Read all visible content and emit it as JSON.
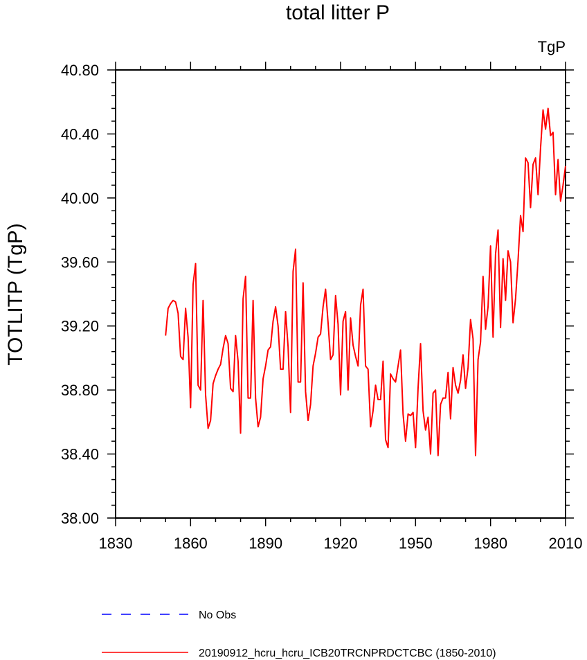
{
  "chart_data": {
    "type": "line",
    "title": "total litter P",
    "units_label": "TgP",
    "ylabel": "TOTLITP  (TgP)",
    "xlabel": "",
    "xlim": [
      1830,
      2010
    ],
    "ylim": [
      38.0,
      40.8
    ],
    "x_ticks": [
      1830,
      1860,
      1890,
      1920,
      1950,
      1980,
      2010
    ],
    "x_tick_labels": [
      "1830",
      "1860",
      "1890",
      "1920",
      "1950",
      "1980",
      "2010"
    ],
    "y_ticks": [
      38.0,
      38.4,
      38.8,
      39.2,
      39.6,
      40.0,
      40.4,
      40.8
    ],
    "y_tick_labels": [
      "38.00",
      "38.40",
      "38.80",
      "39.20",
      "39.60",
      "40.00",
      "40.40",
      "40.80"
    ],
    "grid": false,
    "legend": [
      {
        "label": "No Obs",
        "color": "#0000ff",
        "style": "dashed"
      },
      {
        "label": "20190912_hcru_hcru_ICB20TRCNPRDCTCBC (1850-2010)",
        "color": "#ff0000",
        "style": "solid"
      }
    ],
    "series": [
      {
        "name": "20190912_hcru_hcru_ICB20TRCNPRDCTCBC (1850-2010)",
        "color": "#ff0000",
        "x": [
          1850,
          1851,
          1852,
          1853,
          1854,
          1855,
          1856,
          1857,
          1858,
          1859,
          1860,
          1861,
          1862,
          1863,
          1864,
          1865,
          1866,
          1867,
          1868,
          1869,
          1870,
          1871,
          1872,
          1873,
          1874,
          1875,
          1876,
          1877,
          1878,
          1879,
          1880,
          1881,
          1882,
          1883,
          1884,
          1885,
          1886,
          1887,
          1888,
          1889,
          1890,
          1891,
          1892,
          1893,
          1894,
          1895,
          1896,
          1897,
          1898,
          1899,
          1900,
          1901,
          1902,
          1903,
          1904,
          1905,
          1906,
          1907,
          1908,
          1909,
          1910,
          1911,
          1912,
          1913,
          1914,
          1915,
          1916,
          1917,
          1918,
          1919,
          1920,
          1921,
          1922,
          1923,
          1924,
          1925,
          1926,
          1927,
          1928,
          1929,
          1930,
          1931,
          1932,
          1933,
          1934,
          1935,
          1936,
          1937,
          1938,
          1939,
          1940,
          1941,
          1942,
          1943,
          1944,
          1945,
          1946,
          1947,
          1948,
          1949,
          1950,
          1951,
          1952,
          1953,
          1954,
          1955,
          1956,
          1957,
          1958,
          1959,
          1960,
          1961,
          1962,
          1963,
          1964,
          1965,
          1966,
          1967,
          1968,
          1969,
          1970,
          1971,
          1972,
          1973,
          1974,
          1975,
          1976,
          1977,
          1978,
          1979,
          1980,
          1981,
          1982,
          1983,
          1984,
          1985,
          1986,
          1987,
          1988,
          1989,
          1990,
          1991,
          1992,
          1993,
          1994,
          1995,
          1996,
          1997,
          1998,
          1999,
          2000,
          2001,
          2002,
          2003,
          2004,
          2005,
          2006,
          2007,
          2008,
          2009,
          2010
        ],
        "y": [
          39.14,
          39.31,
          39.34,
          39.36,
          39.35,
          39.28,
          39.01,
          38.99,
          39.31,
          39.13,
          38.69,
          39.46,
          39.59,
          38.83,
          38.8,
          39.36,
          38.77,
          38.56,
          38.61,
          38.84,
          38.89,
          38.93,
          38.96,
          39.06,
          39.14,
          39.09,
          38.81,
          38.79,
          39.14,
          38.98,
          38.53,
          39.37,
          39.51,
          38.75,
          38.75,
          39.36,
          38.75,
          38.57,
          38.63,
          38.87,
          38.95,
          39.05,
          39.07,
          39.23,
          39.32,
          39.2,
          38.93,
          38.93,
          39.29,
          39.07,
          38.66,
          39.54,
          39.68,
          38.85,
          38.85,
          39.47,
          38.79,
          38.61,
          38.71,
          38.95,
          39.03,
          39.13,
          39.15,
          39.32,
          39.43,
          39.22,
          38.99,
          39.02,
          39.39,
          39.21,
          38.77,
          39.23,
          39.29,
          38.8,
          39.25,
          39.08,
          39.01,
          38.95,
          39.33,
          39.43,
          38.95,
          38.93,
          38.57,
          38.67,
          38.83,
          38.74,
          38.74,
          38.98,
          38.49,
          38.44,
          38.9,
          38.87,
          38.85,
          38.95,
          39.05,
          38.65,
          38.48,
          38.65,
          38.64,
          38.66,
          38.44,
          38.81,
          39.09,
          38.67,
          38.55,
          38.63,
          38.4,
          38.78,
          38.8,
          38.39,
          38.71,
          38.75,
          38.75,
          38.91,
          38.62,
          38.94,
          38.83,
          38.78,
          38.86,
          39.02,
          38.81,
          38.94,
          39.24,
          39.12,
          38.39,
          38.99,
          39.1,
          39.51,
          39.18,
          39.32,
          39.7,
          39.13,
          39.65,
          39.8,
          39.19,
          39.62,
          39.36,
          39.67,
          39.6,
          39.22,
          39.37,
          39.61,
          39.89,
          39.79,
          40.25,
          40.22,
          39.94,
          40.21,
          40.25,
          40.02,
          40.31,
          40.55,
          40.43,
          40.56,
          40.39,
          40.41,
          40.02,
          40.24,
          39.98,
          40.08,
          40.2
        ]
      }
    ]
  }
}
